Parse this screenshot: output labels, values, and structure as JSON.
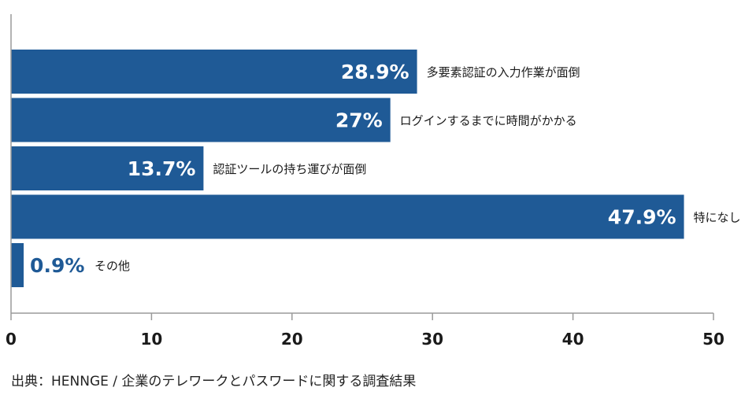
{
  "chart_data": {
    "type": "bar",
    "orientation": "horizontal",
    "categories": [
      "多要素認証の入力作業が面倒",
      "ログインするまでに時間がかかる",
      "認証ツールの持ち運びが面倒",
      "特になし",
      "その他"
    ],
    "values": [
      28.9,
      27,
      13.7,
      47.9,
      0.9
    ],
    "value_labels": [
      "28.9%",
      "27%",
      "13.7%",
      "47.9%",
      "0.9%"
    ],
    "xlim": [
      0,
      50
    ],
    "x_ticks": [
      0,
      10,
      20,
      30,
      40,
      50
    ],
    "grid": false,
    "bar_color": "#1f5a96",
    "value_label_color_inside": "#ffffff",
    "value_label_color_outside": "#1f5a96"
  },
  "source": "出典：HENNGE / 企業のテレワークとパスワードに関する調査結果"
}
